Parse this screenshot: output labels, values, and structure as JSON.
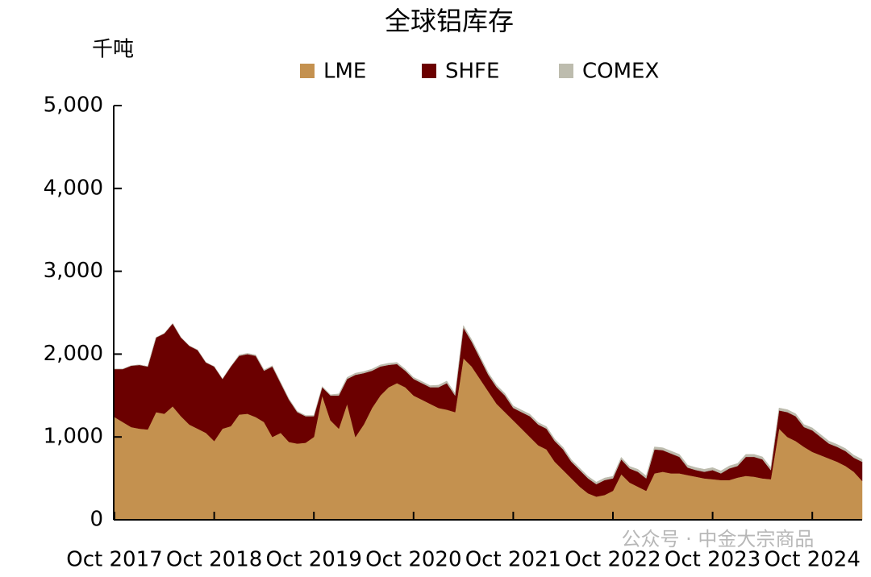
{
  "chart_data": {
    "type": "stacked_area",
    "title": "全球铝库存",
    "y_label": "千吨",
    "watermark": "公众号 · 中金大宗商品",
    "categories": [
      "Oct 2017",
      null,
      null,
      null,
      null,
      null,
      null,
      null,
      null,
      null,
      null,
      null,
      "Oct 2018",
      null,
      null,
      null,
      null,
      null,
      null,
      null,
      null,
      null,
      null,
      null,
      "Oct 2019",
      null,
      null,
      null,
      null,
      null,
      null,
      null,
      null,
      null,
      null,
      null,
      "Oct 2020",
      null,
      null,
      null,
      null,
      null,
      null,
      null,
      null,
      null,
      null,
      null,
      "Oct 2021",
      null,
      null,
      null,
      null,
      null,
      null,
      null,
      null,
      null,
      null,
      null,
      "Oct 2022",
      null,
      null,
      null,
      null,
      null,
      null,
      null,
      null,
      null,
      null,
      null,
      "Oct 2023",
      null,
      null,
      null,
      null,
      null,
      null,
      null,
      null,
      null,
      null,
      null,
      "Oct 2024",
      null,
      null,
      null,
      null,
      null,
      null
    ],
    "series": [
      {
        "name": "LME",
        "color": "#c4914f",
        "values": [
          1240,
          1180,
          1120,
          1100,
          1090,
          1300,
          1280,
          1370,
          1250,
          1150,
          1100,
          1050,
          950,
          1100,
          1130,
          1270,
          1280,
          1240,
          1180,
          1000,
          1050,
          940,
          920,
          930,
          1000,
          1500,
          1200,
          1100,
          1400,
          1000,
          1150,
          1350,
          1500,
          1600,
          1650,
          1600,
          1500,
          1450,
          1400,
          1350,
          1330,
          1300,
          1950,
          1850,
          1700,
          1550,
          1400,
          1300,
          1200,
          1100,
          1000,
          900,
          850,
          700,
          600,
          500,
          400,
          320,
          280,
          300,
          350,
          550,
          450,
          400,
          350,
          560,
          580,
          560,
          560,
          540,
          520,
          500,
          490,
          480,
          480,
          510,
          530,
          520,
          500,
          490,
          1100,
          1000,
          950,
          880,
          820,
          780,
          740,
          700,
          650,
          580,
          470
        ]
      },
      {
        "name": "SHFE",
        "color": "#6b0000",
        "values": [
          580,
          640,
          740,
          770,
          760,
          900,
          970,
          1000,
          950,
          950,
          950,
          850,
          900,
          600,
          720,
          710,
          720,
          740,
          620,
          850,
          600,
          510,
          380,
          320,
          250,
          100,
          300,
          400,
          300,
          750,
          620,
          450,
          350,
          270,
          230,
          200,
          200,
          200,
          200,
          250,
          320,
          200,
          370,
          300,
          250,
          200,
          200,
          200,
          150,
          200,
          250,
          250,
          250,
          250,
          250,
          200,
          200,
          180,
          150,
          180,
          150,
          180,
          170,
          180,
          150,
          290,
          260,
          240,
          200,
          90,
          80,
          80,
          110,
          80,
          140,
          140,
          230,
          240,
          230,
          110,
          220,
          300,
          300,
          240,
          260,
          220,
          180,
          180,
          180,
          170,
          230
        ]
      },
      {
        "name": "COMEX",
        "color": "#bdbcae",
        "values": [
          0,
          0,
          0,
          0,
          0,
          0,
          0,
          0,
          0,
          0,
          0,
          0,
          0,
          0,
          0,
          10,
          10,
          10,
          10,
          10,
          10,
          10,
          10,
          10,
          10,
          10,
          10,
          20,
          20,
          20,
          20,
          20,
          20,
          20,
          20,
          20,
          20,
          20,
          20,
          25,
          25,
          25,
          25,
          25,
          25,
          25,
          25,
          25,
          25,
          25,
          25,
          25,
          25,
          25,
          25,
          25,
          25,
          25,
          25,
          25,
          25,
          25,
          25,
          30,
          30,
          30,
          30,
          30,
          30,
          30,
          30,
          30,
          30,
          30,
          30,
          30,
          30,
          30,
          30,
          30,
          30,
          30,
          30,
          30,
          30,
          30,
          30,
          30,
          30,
          30,
          30
        ]
      }
    ],
    "ylim": [
      0,
      5000
    ],
    "yticks": [
      0,
      {
        "value": 1000,
        "label": "1,000"
      },
      {
        "value": 2000,
        "label": "2,000"
      },
      {
        "value": 3000,
        "label": "3,000"
      },
      {
        "value": 4000,
        "label": "4,000"
      },
      {
        "value": 5000,
        "label": "5,000"
      }
    ],
    "legend": "top"
  }
}
